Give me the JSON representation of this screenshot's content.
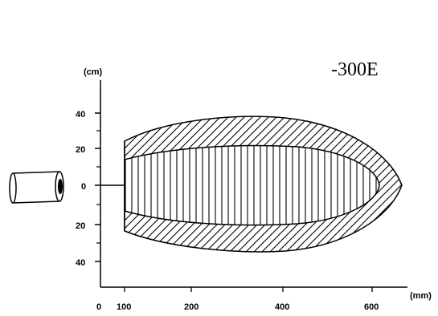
{
  "model_label": "-300E",
  "y_axis_unit": "(cm)",
  "x_axis_unit": "(mm)",
  "y_ticks": [
    {
      "value": 40,
      "label": "40"
    },
    {
      "value": 20,
      "label": "20"
    },
    {
      "value": 0,
      "label": "0"
    },
    {
      "value": -20,
      "label": "20"
    },
    {
      "value": -40,
      "label": "40"
    }
  ],
  "x_ticks": [
    {
      "value": 0,
      "label": "0"
    },
    {
      "value": 100,
      "label": "100"
    },
    {
      "value": 200,
      "label": "200"
    },
    {
      "value": 400,
      "label": "400"
    },
    {
      "value": 600,
      "label": "600"
    }
  ],
  "zones": [
    {
      "name": "outer-zone",
      "hatch": "diagonal"
    },
    {
      "name": "inner-zone",
      "hatch": "vertical"
    }
  ],
  "sensor_icon": "cylindrical-sensor-icon",
  "colors": {
    "line": "#000000",
    "background": "#ffffff"
  }
}
